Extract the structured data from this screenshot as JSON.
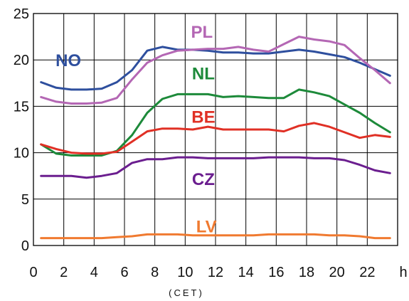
{
  "chart_data": {
    "type": "line",
    "title": "",
    "xlabel": "(CET)",
    "x_unit_label": "h",
    "ylabel": "",
    "xlim": [
      0,
      24
    ],
    "ylim": [
      0,
      25
    ],
    "xticks": [
      "0",
      "2",
      "4",
      "6",
      "8",
      "10",
      "12",
      "14",
      "16",
      "18",
      "20",
      "22"
    ],
    "yticks": [
      "0",
      "5",
      "10",
      "15",
      "20",
      "25"
    ],
    "grid": true,
    "legend": "inline labels",
    "x": [
      0.5,
      1.5,
      2.5,
      3.5,
      4.5,
      5.5,
      6.5,
      7.5,
      8.5,
      9.5,
      10.5,
      11.5,
      12.5,
      13.5,
      14.5,
      15.5,
      16.5,
      17.5,
      18.5,
      19.5,
      20.5,
      21.5,
      22.5,
      23.5
    ],
    "series": [
      {
        "name": "NO",
        "color": "#2e4f9e",
        "label_pos": [
          2.3,
          20
        ],
        "values": [
          17.6,
          17.0,
          16.8,
          16.8,
          16.9,
          17.6,
          18.9,
          21.0,
          21.4,
          21.1,
          21.1,
          21.0,
          20.8,
          20.8,
          20.7,
          20.7,
          20.9,
          21.1,
          20.9,
          20.6,
          20.3,
          19.7,
          19.0,
          18.3
        ]
      },
      {
        "name": "PL",
        "color": "#b467b4",
        "label_pos": [
          11.1,
          23.1
        ],
        "values": [
          16.0,
          15.5,
          15.3,
          15.3,
          15.4,
          15.9,
          17.9,
          19.7,
          20.5,
          21.0,
          21.1,
          21.2,
          21.2,
          21.4,
          21.1,
          20.9,
          21.7,
          22.5,
          22.2,
          22.0,
          21.6,
          20.2,
          18.9,
          17.5
        ]
      },
      {
        "name": "NL",
        "color": "#1d8a3a",
        "label_pos": [
          11.2,
          18.6
        ],
        "values": [
          10.9,
          9.9,
          9.7,
          9.7,
          9.7,
          10.2,
          11.9,
          14.3,
          15.8,
          16.3,
          16.3,
          16.3,
          16.0,
          16.1,
          16.0,
          15.9,
          15.9,
          16.8,
          16.5,
          16.1,
          15.2,
          14.3,
          13.2,
          12.2
        ]
      },
      {
        "name": "BE",
        "color": "#e03025",
        "label_pos": [
          11.2,
          13.9
        ],
        "values": [
          10.9,
          10.4,
          10.0,
          9.9,
          9.9,
          10.1,
          11.2,
          12.3,
          12.6,
          12.6,
          12.5,
          12.8,
          12.5,
          12.5,
          12.5,
          12.5,
          12.3,
          12.9,
          13.2,
          12.8,
          12.2,
          11.6,
          11.9,
          11.7
        ]
      },
      {
        "name": "CZ",
        "color": "#6b1e8f",
        "label_pos": [
          11.2,
          7.2
        ],
        "values": [
          7.5,
          7.5,
          7.5,
          7.3,
          7.5,
          7.8,
          8.9,
          9.3,
          9.3,
          9.5,
          9.5,
          9.4,
          9.4,
          9.4,
          9.4,
          9.5,
          9.5,
          9.5,
          9.4,
          9.4,
          9.2,
          8.7,
          8.1,
          7.8
        ]
      },
      {
        "name": "LV",
        "color": "#f07a30",
        "label_pos": [
          11.4,
          2.1
        ],
        "values": [
          0.8,
          0.8,
          0.8,
          0.8,
          0.8,
          0.9,
          1.0,
          1.2,
          1.2,
          1.2,
          1.1,
          1.1,
          1.1,
          1.1,
          1.1,
          1.2,
          1.2,
          1.2,
          1.2,
          1.1,
          1.1,
          1.0,
          0.8,
          0.8
        ]
      }
    ]
  }
}
